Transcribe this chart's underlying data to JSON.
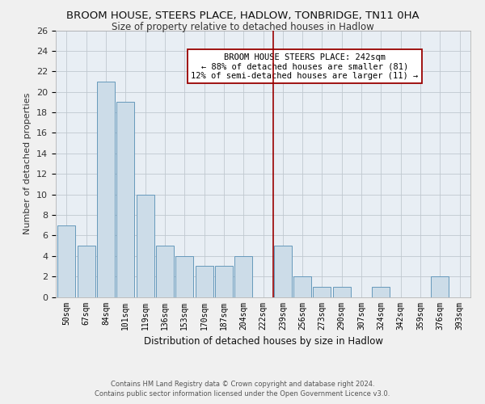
{
  "title": "BROOM HOUSE, STEERS PLACE, HADLOW, TONBRIDGE, TN11 0HA",
  "subtitle": "Size of property relative to detached houses in Hadlow",
  "xlabel": "Distribution of detached houses by size in Hadlow",
  "ylabel": "Number of detached properties",
  "categories": [
    "50sqm",
    "67sqm",
    "84sqm",
    "101sqm",
    "119sqm",
    "136sqm",
    "153sqm",
    "170sqm",
    "187sqm",
    "204sqm",
    "222sqm",
    "239sqm",
    "256sqm",
    "273sqm",
    "290sqm",
    "307sqm",
    "324sqm",
    "342sqm",
    "359sqm",
    "376sqm",
    "393sqm"
  ],
  "values": [
    7,
    5,
    21,
    19,
    10,
    5,
    4,
    3,
    3,
    4,
    0,
    5,
    2,
    1,
    1,
    0,
    1,
    0,
    0,
    2,
    0
  ],
  "bar_color": "#ccdce8",
  "bar_edge_color": "#6699bb",
  "annotation_line_index": 11,
  "marker_line_color": "#990000",
  "ylim": [
    0,
    26
  ],
  "yticks": [
    0,
    2,
    4,
    6,
    8,
    10,
    12,
    14,
    16,
    18,
    20,
    22,
    24,
    26
  ],
  "ann_title": "BROOM HOUSE STEERS PLACE: 242sqm",
  "ann_line1": "← 88% of detached houses are smaller (81)",
  "ann_line2": "12% of semi-detached houses are larger (11) →",
  "footer1": "Contains HM Land Registry data © Crown copyright and database right 2024.",
  "footer2": "Contains public sector information licensed under the Open Government Licence v3.0.",
  "bg_color": "#f0f0f0",
  "plot_bg": "#e8eef4"
}
